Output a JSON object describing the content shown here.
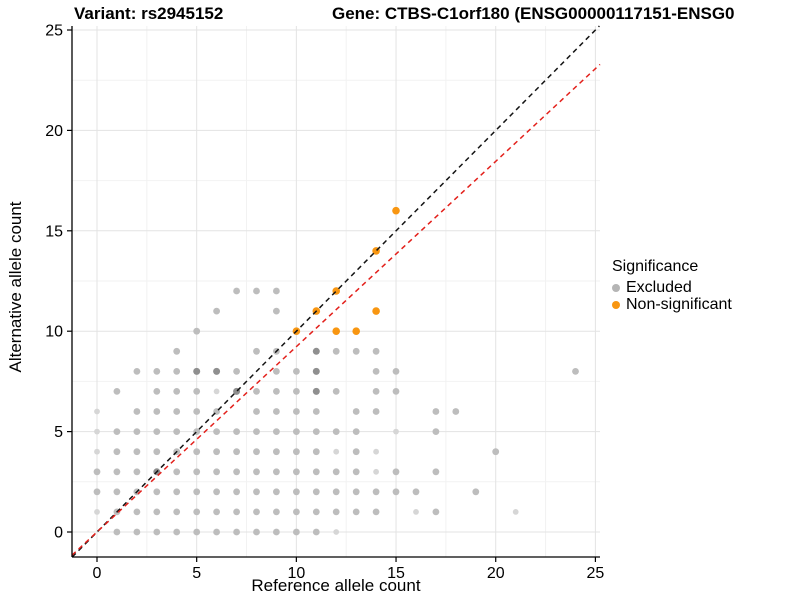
{
  "legend": {
    "title": "Significance",
    "items": [
      {
        "label": "Excluded",
        "color": "#b5b5b5"
      },
      {
        "label": "Non-significant",
        "color": "#f89611"
      }
    ]
  },
  "chart_data": {
    "type": "scatter",
    "title_left": "Variant: rs2945152",
    "title_right": "Gene: CTBS-C1orf180 (ENSG00000117151-ENSG0",
    "xlabel": "Reference allele count",
    "ylabel": "Alternative allele count",
    "xlim": [
      -1.25,
      25.25
    ],
    "ylim": [
      -1.25,
      25.2
    ],
    "x_ticks": [
      0,
      5,
      10,
      15,
      20,
      25
    ],
    "y_ticks": [
      0,
      5,
      10,
      15,
      20,
      25
    ],
    "minor_gridlines": [
      2.5,
      7.5,
      12.5,
      17.5,
      22.5
    ],
    "grid": true,
    "legend_position": "right",
    "series": [
      {
        "name": "Excluded",
        "color": "#bdbdbd",
        "color_light": "#d6d6d6",
        "color_dark": "#8f8f8f",
        "points": [
          [
            1,
            0
          ],
          [
            2,
            0
          ],
          [
            3,
            0
          ],
          [
            4,
            0
          ],
          [
            5,
            0
          ],
          [
            6,
            0
          ],
          [
            7,
            0
          ],
          [
            8,
            0
          ],
          [
            9,
            0
          ],
          [
            10,
            0
          ],
          [
            11,
            0
          ],
          [
            12,
            0,
            0
          ],
          [
            0,
            1,
            0
          ],
          [
            1,
            1
          ],
          [
            2,
            1
          ],
          [
            3,
            1
          ],
          [
            4,
            1
          ],
          [
            5,
            1
          ],
          [
            6,
            1
          ],
          [
            7,
            1
          ],
          [
            8,
            1
          ],
          [
            9,
            1
          ],
          [
            10,
            1
          ],
          [
            11,
            1
          ],
          [
            12,
            1
          ],
          [
            13,
            1
          ],
          [
            14,
            1
          ],
          [
            16,
            1,
            0
          ],
          [
            17,
            1
          ],
          [
            21,
            1,
            0
          ],
          [
            0,
            2
          ],
          [
            1,
            2
          ],
          [
            2,
            2
          ],
          [
            3,
            2
          ],
          [
            4,
            2
          ],
          [
            5,
            2
          ],
          [
            6,
            2
          ],
          [
            7,
            2
          ],
          [
            8,
            2
          ],
          [
            9,
            2
          ],
          [
            10,
            2
          ],
          [
            11,
            2
          ],
          [
            12,
            2
          ],
          [
            13,
            2
          ],
          [
            14,
            2
          ],
          [
            15,
            2
          ],
          [
            16,
            2
          ],
          [
            19,
            2
          ],
          [
            0,
            3
          ],
          [
            1,
            3
          ],
          [
            2,
            3
          ],
          [
            3,
            3,
            2
          ],
          [
            4,
            3
          ],
          [
            5,
            3
          ],
          [
            6,
            3
          ],
          [
            7,
            3
          ],
          [
            8,
            3
          ],
          [
            9,
            3
          ],
          [
            10,
            3
          ],
          [
            11,
            3
          ],
          [
            12,
            3
          ],
          [
            13,
            3
          ],
          [
            14,
            3,
            0
          ],
          [
            15,
            3
          ],
          [
            17,
            3
          ],
          [
            0,
            4,
            0
          ],
          [
            1,
            4
          ],
          [
            2,
            4
          ],
          [
            3,
            4
          ],
          [
            4,
            4
          ],
          [
            5,
            4
          ],
          [
            6,
            4
          ],
          [
            7,
            4
          ],
          [
            8,
            4
          ],
          [
            9,
            4
          ],
          [
            10,
            4
          ],
          [
            11,
            4
          ],
          [
            12,
            4,
            0
          ],
          [
            13,
            4
          ],
          [
            14,
            4,
            0
          ],
          [
            20,
            4
          ],
          [
            0,
            5,
            0
          ],
          [
            1,
            5
          ],
          [
            2,
            5
          ],
          [
            3,
            5
          ],
          [
            4,
            5
          ],
          [
            5,
            5
          ],
          [
            6,
            5
          ],
          [
            7,
            5
          ],
          [
            8,
            5
          ],
          [
            9,
            5
          ],
          [
            10,
            5
          ],
          [
            11,
            5
          ],
          [
            12,
            5
          ],
          [
            13,
            5
          ],
          [
            15,
            5,
            0
          ],
          [
            17,
            5
          ],
          [
            0,
            6,
            0
          ],
          [
            2,
            6
          ],
          [
            3,
            6
          ],
          [
            4,
            6
          ],
          [
            5,
            6
          ],
          [
            6,
            6
          ],
          [
            8,
            6
          ],
          [
            9,
            6
          ],
          [
            10,
            6
          ],
          [
            11,
            6
          ],
          [
            13,
            6
          ],
          [
            14,
            6
          ],
          [
            17,
            6
          ],
          [
            18,
            6
          ],
          [
            1,
            7
          ],
          [
            3,
            7
          ],
          [
            4,
            7
          ],
          [
            5,
            7
          ],
          [
            6,
            7,
            0
          ],
          [
            7,
            7,
            2
          ],
          [
            8,
            7
          ],
          [
            9,
            7
          ],
          [
            10,
            7
          ],
          [
            11,
            7,
            2
          ],
          [
            12,
            7
          ],
          [
            14,
            7
          ],
          [
            15,
            7
          ],
          [
            2,
            8
          ],
          [
            3,
            8
          ],
          [
            4,
            8
          ],
          [
            5,
            8,
            2
          ],
          [
            6,
            8,
            2
          ],
          [
            7,
            8
          ],
          [
            9,
            8
          ],
          [
            10,
            8
          ],
          [
            11,
            8,
            2
          ],
          [
            14,
            8
          ],
          [
            15,
            8
          ],
          [
            24,
            8
          ],
          [
            4,
            9
          ],
          [
            8,
            9
          ],
          [
            9,
            9
          ],
          [
            11,
            9,
            2
          ],
          [
            12,
            9
          ],
          [
            13,
            9
          ],
          [
            14,
            9
          ],
          [
            5,
            10
          ],
          [
            6,
            11
          ],
          [
            9,
            11
          ],
          [
            7,
            12
          ],
          [
            8,
            12
          ],
          [
            9,
            12
          ]
        ]
      },
      {
        "name": "Non-significant",
        "color": "#f89611",
        "points": [
          [
            10,
            10
          ],
          [
            11,
            11
          ],
          [
            12,
            10
          ],
          [
            13,
            10
          ],
          [
            12,
            12
          ],
          [
            14,
            11
          ],
          [
            14,
            14
          ],
          [
            15,
            16
          ]
        ]
      }
    ],
    "lines": [
      {
        "name": "identity",
        "slope": 1,
        "intercept": 0,
        "color": "#141414",
        "style": "dashed"
      },
      {
        "name": "expected-ratio",
        "slope": 0.923,
        "intercept": 0,
        "color": "#e3201b",
        "style": "dashed"
      }
    ]
  }
}
